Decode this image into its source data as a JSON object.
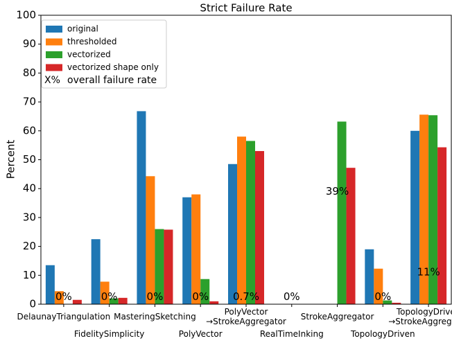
{
  "chart_data": {
    "type": "bar",
    "title": "Strict Failure Rate",
    "y_label": "Percent",
    "categories": [
      "DelaunayTriangulation",
      "FidelitySimplicity",
      "MasteringSketching",
      "PolyVector",
      "PolyVector\n→StrokeAggregator",
      "RealTimeInking",
      "StrokeAggregator",
      "TopologyDriven",
      "TopologyDriven\n→StrokeAggregator"
    ],
    "series": [
      {
        "name": "original",
        "color": "#1f77b4",
        "values": [
          13.5,
          22.5,
          66.8,
          37,
          48.5,
          null,
          null,
          19,
          60
        ]
      },
      {
        "name": "thresholded",
        "color": "#ff7f0e",
        "values": [
          4.5,
          7.8,
          44.3,
          38,
          58,
          null,
          null,
          12.3,
          65.6
        ]
      },
      {
        "name": "vectorized",
        "color": "#2ca02c",
        "values": [
          null,
          2,
          26,
          8.7,
          56.5,
          null,
          63.2,
          1.3,
          65.4
        ]
      },
      {
        "name": "vectorized shape only",
        "color": "#d62728",
        "values": [
          1.5,
          2.2,
          25.8,
          1,
          53,
          null,
          47.2,
          0.5,
          54.3
        ]
      }
    ],
    "overall": {
      "marker": "X%",
      "name": "overall failure rate",
      "values": [
        0,
        0,
        0,
        0,
        0.7,
        0,
        39,
        0,
        11
      ],
      "value_labels": [
        "0%",
        "0%",
        "0%",
        "0%",
        "0.7%",
        "0%",
        "39%",
        "0%",
        "11%"
      ]
    },
    "ylim": [
      0,
      100
    ],
    "yticks": [
      0,
      10,
      20,
      30,
      40,
      50,
      60,
      70,
      80,
      90,
      100
    ],
    "legend": "upper left"
  }
}
